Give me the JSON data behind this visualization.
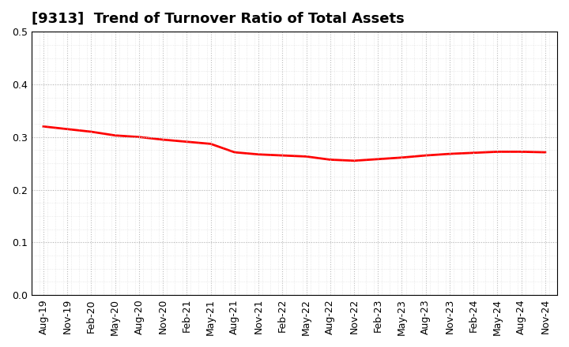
{
  "title": "[9313]  Trend of Turnover Ratio of Total Assets",
  "x_labels": [
    "Aug-19",
    "Nov-19",
    "Feb-20",
    "May-20",
    "Aug-20",
    "Nov-20",
    "Feb-21",
    "May-21",
    "Aug-21",
    "Nov-21",
    "Feb-22",
    "May-22",
    "Aug-22",
    "Nov-22",
    "Feb-23",
    "May-23",
    "Aug-23",
    "Nov-23",
    "Feb-24",
    "May-24",
    "Aug-24",
    "Nov-24"
  ],
  "y_values": [
    0.32,
    0.315,
    0.31,
    0.303,
    0.3,
    0.295,
    0.291,
    0.287,
    0.271,
    0.267,
    0.265,
    0.263,
    0.257,
    0.255,
    0.258,
    0.261,
    0.265,
    0.268,
    0.27,
    0.272,
    0.272,
    0.271
  ],
  "line_color": "#FF0000",
  "line_width": 2.0,
  "ylim": [
    0.0,
    0.5
  ],
  "yticks": [
    0.0,
    0.1,
    0.2,
    0.3,
    0.4,
    0.5
  ],
  "bg_color": "#FFFFFF",
  "grid_color": "#BBBBBB",
  "title_fontsize": 13,
  "axis_fontsize": 9
}
